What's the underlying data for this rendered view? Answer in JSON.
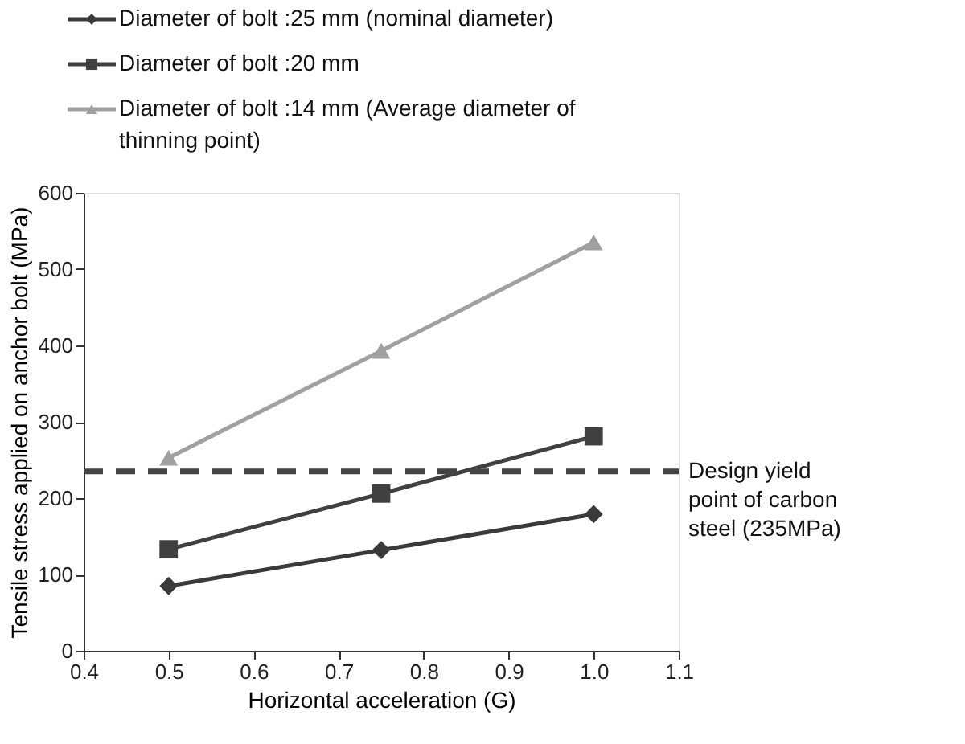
{
  "chart_data": {
    "type": "line",
    "xlabel": "Horizontal acceleration (G)",
    "ylabel": "Tensile stress applied on anchor bolt (MPa)",
    "x": [
      0.5,
      0.75,
      1.0
    ],
    "series": [
      {
        "name": "Diameter of bolt :25 mm (nominal diameter)",
        "color": "#3a3a3a",
        "marker": "diamond",
        "values": [
          85,
          132,
          179
        ]
      },
      {
        "name": "Diameter of bolt :20 mm",
        "color": "#404040",
        "marker": "square",
        "values": [
          133,
          206,
          281
        ]
      },
      {
        "name": "Diameter of bolt :14 mm (Average diameter of thinning point)",
        "color": "#a0a0a0",
        "marker": "triangle",
        "values": [
          253,
          393,
          535
        ]
      }
    ],
    "xlim": [
      0.4,
      1.1
    ],
    "xticks": [
      0.4,
      0.5,
      0.6,
      0.7,
      0.8,
      0.9,
      {
        "value": 1.0,
        "label": "1.0"
      },
      1.1
    ],
    "ylim": [
      0,
      600
    ],
    "yticks": [
      0,
      100,
      200,
      300,
      400,
      500,
      600
    ],
    "ref_lines": [
      {
        "axis": "y",
        "value": 235,
        "label": "Design yield point of carbon steel (235MPa)",
        "color": "#444444",
        "line_style": "dashed"
      }
    ],
    "grid": false,
    "legend": "top",
    "line_style": "solid"
  }
}
